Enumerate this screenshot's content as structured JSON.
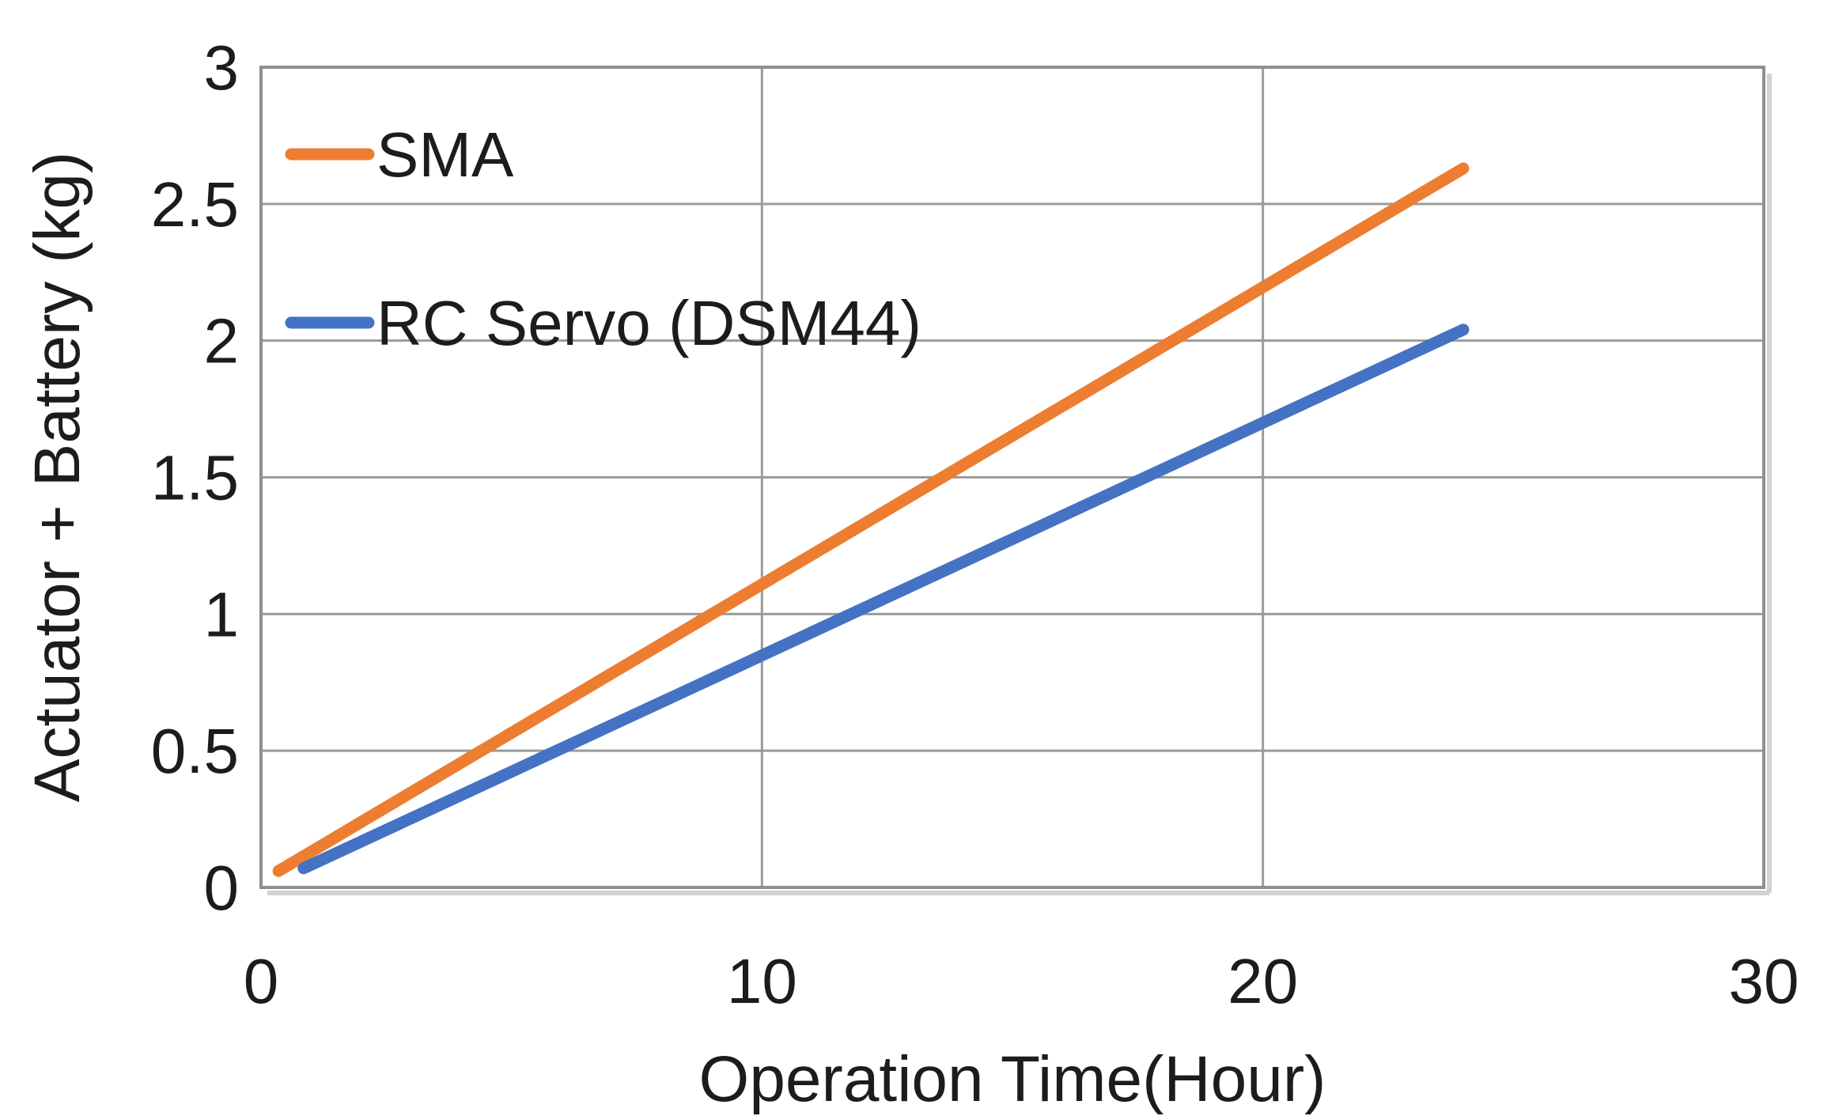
{
  "chart_data": {
    "type": "line",
    "title": "",
    "xlabel": "Operation Time(Hour)",
    "ylabel": "Actuator + Battery (kg)",
    "xlim": [
      0,
      30
    ],
    "ylim": [
      0,
      3
    ],
    "xticks": {
      "values": [
        0,
        10,
        20,
        30
      ],
      "labels": [
        "0",
        "10",
        "20",
        "30"
      ]
    },
    "yticks": {
      "values": [
        0,
        0.5,
        1,
        1.5,
        2,
        2.5,
        3
      ],
      "labels": [
        "0",
        "0.5",
        "1",
        "1.5",
        "2",
        "2.5",
        "3"
      ]
    },
    "grid": {
      "visible": true,
      "horizontal_step": 0.5,
      "vertical_step": 10
    },
    "legend": {
      "position": "top-left-inside",
      "entries": [
        "SMA",
        "RC Servo (DSM44)"
      ]
    },
    "series": [
      {
        "name": "SMA",
        "color": "#ED7D31",
        "points": [
          [
            0.35,
            0.06
          ],
          [
            24,
            2.63
          ]
        ]
      },
      {
        "name": "RC Servo (DSM44)",
        "color": "#4472C4",
        "points": [
          [
            0.85,
            0.07
          ],
          [
            24,
            2.04
          ]
        ]
      }
    ]
  },
  "style": {
    "grid_color": "#9B9B9B",
    "border_color": "#8F8F8F",
    "shadow_color": "#D2D2D2",
    "text_color": "#1C1C1C",
    "background": "#FFFFFF",
    "line_width": 15
  }
}
